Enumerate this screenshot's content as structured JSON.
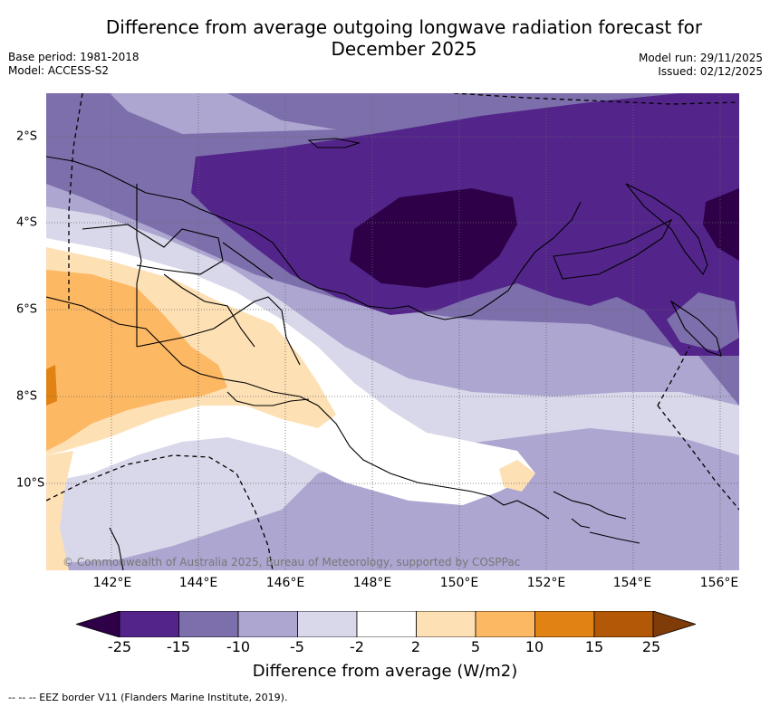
{
  "title_line1": "Difference from average outgoing longwave radiation forecast for",
  "title_line2": "December 2025",
  "base_period": "Base period: 1981-2018",
  "model": "Model: ACCESS-S2",
  "model_run": "Model run: 29/11/2025",
  "issued": "Issued: 02/12/2025",
  "x_ticks": [
    "142°E",
    "144°E",
    "146°E",
    "148°E",
    "150°E",
    "152°E",
    "154°E",
    "156°E"
  ],
  "y_ticks": [
    "2°S",
    "4°S",
    "6°S",
    "8°S",
    "10°S"
  ],
  "copyright": "© Commonwealth of Australia 2025, Bureau of Meteorology, supported by COSPPac",
  "colorbar": {
    "labels": [
      "-25",
      "-15",
      "-10",
      "-5",
      "-2",
      "2",
      "5",
      "10",
      "15",
      "25"
    ],
    "colors": [
      "#2e0048",
      "#53258a",
      "#7d6fab",
      "#aca6d0",
      "#d8d8ea",
      "#ffffff",
      "#fee0b5",
      "#fdb864",
      "#e08214",
      "#b35806",
      "#7f3b08"
    ],
    "title": "Difference from average (W/m2)"
  },
  "eez_legend": "--  --  -- EEZ border V11 (Flanders Marine Institute, 2019)."
}
